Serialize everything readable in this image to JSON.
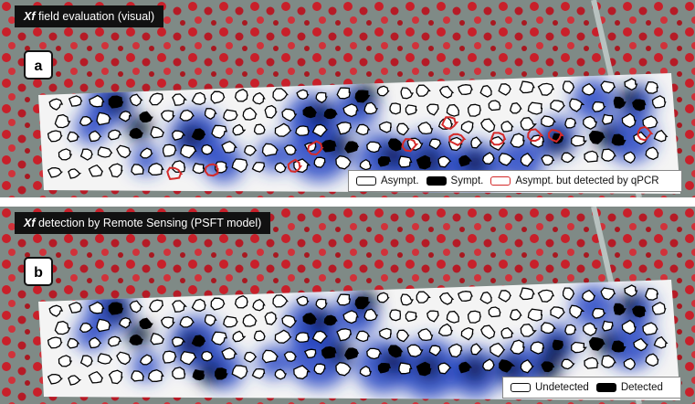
{
  "panel_a": {
    "title_italic": "Xf",
    "title_rest": " field evaluation (visual)",
    "letter": "a",
    "legend": [
      {
        "swatch": "white",
        "label": "Asympt."
      },
      {
        "swatch": "black",
        "label": "Sympt."
      },
      {
        "swatch": "red",
        "label": "Asympt. but detected by qPCR"
      }
    ]
  },
  "panel_b": {
    "title_italic": "Xf",
    "title_rest": " detection by Remote Sensing (PSFT model)",
    "letter": "b",
    "legend": [
      {
        "swatch": "white",
        "label": "Undetected"
      },
      {
        "swatch": "black",
        "label": "Detected"
      }
    ]
  },
  "colors": {
    "background_field": "#7f8a86",
    "tree_red": "#c8202a",
    "heat_blue": "#1f3fb8",
    "heat_dark": "#05092a",
    "qpcr_red": "#d42a2a"
  }
}
